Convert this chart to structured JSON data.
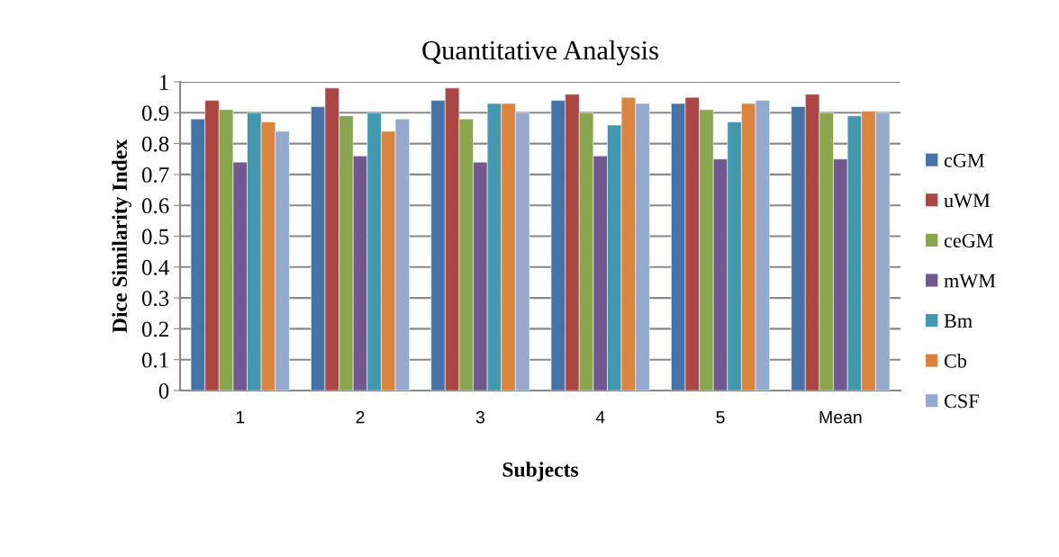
{
  "chart_data": {
    "type": "bar",
    "title": "Quantitative Analysis",
    "xlabel": "Subjects",
    "ylabel": "Dice Similarity Index",
    "categories": [
      "1",
      "2",
      "3",
      "4",
      "5",
      "Mean"
    ],
    "series": [
      {
        "name": "cGM",
        "color": "#4572a7",
        "values": [
          0.88,
          0.92,
          0.94,
          0.94,
          0.93,
          0.92
        ]
      },
      {
        "name": "uWM",
        "color": "#aa4643",
        "values": [
          0.94,
          0.98,
          0.98,
          0.96,
          0.95,
          0.96
        ]
      },
      {
        "name": "ceGM",
        "color": "#89a54e",
        "values": [
          0.91,
          0.89,
          0.88,
          0.9,
          0.91,
          0.9
        ]
      },
      {
        "name": "mWM",
        "color": "#71588f",
        "values": [
          0.74,
          0.76,
          0.74,
          0.76,
          0.75,
          0.75
        ]
      },
      {
        "name": "Bm",
        "color": "#4198af",
        "values": [
          0.9,
          0.9,
          0.93,
          0.86,
          0.87,
          0.89
        ]
      },
      {
        "name": "Cb",
        "color": "#db843d",
        "values": [
          0.87,
          0.84,
          0.93,
          0.95,
          0.93,
          0.905
        ]
      },
      {
        "name": "CSF",
        "color": "#93a9cf",
        "values": [
          0.84,
          0.88,
          0.9,
          0.93,
          0.94,
          0.9
        ]
      }
    ],
    "ylim": [
      0,
      1
    ],
    "yticks": [
      0,
      {
        "value": 0.1,
        "label": "0.1"
      },
      {
        "value": 0.2,
        "label": "0.2"
      },
      {
        "value": 0.3,
        "label": "0.3"
      },
      {
        "value": 0.4,
        "label": "0.4"
      },
      {
        "value": 0.5,
        "label": "0.5"
      },
      {
        "value": 0.6,
        "label": "0.6"
      },
      {
        "value": 0.7,
        "label": "0.7"
      },
      {
        "value": 0.8,
        "label": "0.8"
      },
      {
        "value": 0.9,
        "label": "0.9"
      },
      1
    ],
    "grid": "y",
    "legend": "right"
  }
}
